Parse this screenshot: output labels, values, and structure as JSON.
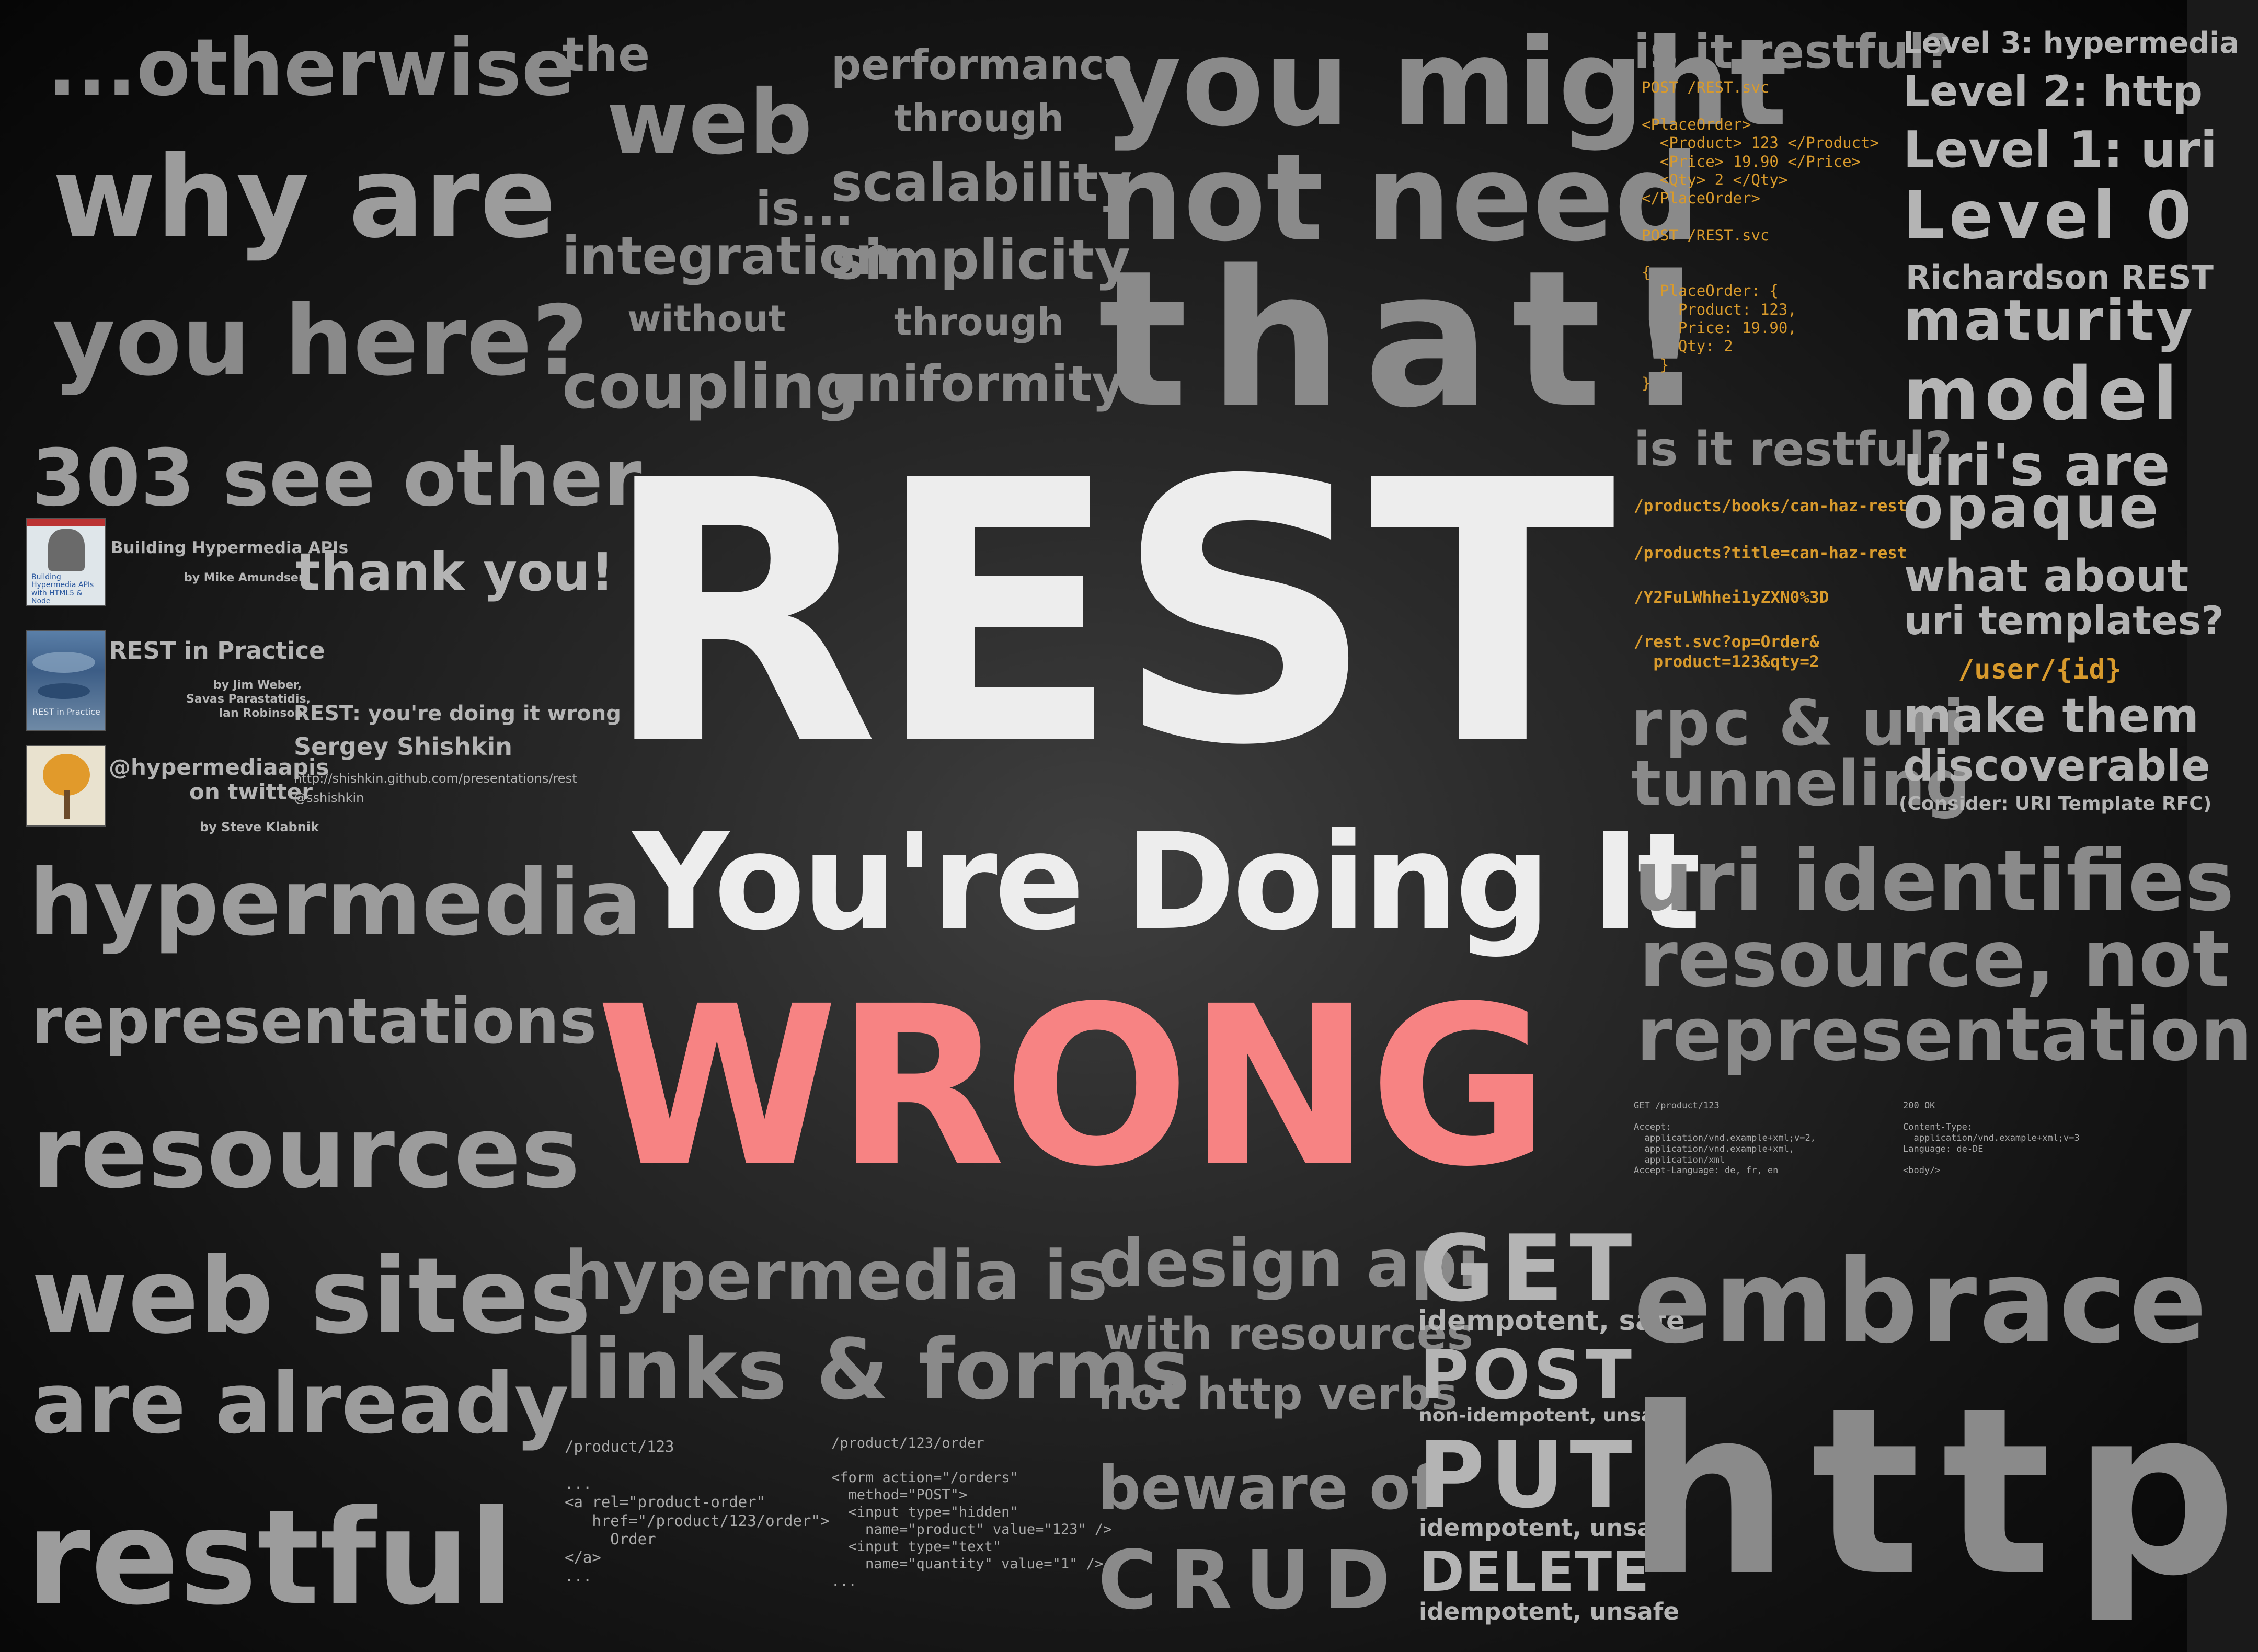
{
  "main": {
    "title": "REST",
    "subtitle": "You're Doing It",
    "emphasis": "WRONG"
  },
  "left_column": {
    "otherwise": "...otherwise",
    "why_are": "why are",
    "you_here": "you here?",
    "see_other": "303 see other",
    "thank_you": "thank you!",
    "hypermedia": "hypermedia",
    "representations": "representations",
    "resources": "resources",
    "web_sites": "web sites",
    "are_already": "are already",
    "restful": "restful"
  },
  "books": {
    "book1_title": "Building Hypermedia APIs",
    "book1_author": "by Mike Amundsen",
    "book1_cover_text": "Building Hypermedia APIs with HTML5 & Node",
    "book2_title": "REST in Practice",
    "book2_authors_1": "by Jim Weber,",
    "book2_authors_2": "Savas Parastatidis,",
    "book2_authors_3": "Ian Robinson",
    "book2_cover_text": "REST in Practice",
    "book3_handle": "@hypermediaapis",
    "book3_on": "on twitter",
    "book3_author": "by Steve Klabnik"
  },
  "credits": {
    "talk": "REST: you're doing it wrong",
    "name": "Sergey Shishkin",
    "url": "http://shishkin.github.com/presentations/rest",
    "handle": "@sshishkin"
  },
  "top_middle": {
    "the": "the",
    "web": "web",
    "is": "is...",
    "integration": "integration",
    "without": "without",
    "coupling": "coupling",
    "performance": "performance",
    "through1": "through",
    "scalability": "scalability",
    "simplicity": "simplicity",
    "through2": "through",
    "uniformity": "uniformity",
    "you_might": "you might",
    "not_need": "not need",
    "that": "that!"
  },
  "right_code": {
    "is_it_restful1": "is it restful?",
    "code1": "POST /REST.svc\n\n<PlaceOrder>\n  <Product> 123 </Product>\n  <Price> 19.90 </Price>\n  <Qty> 2 </Qty>\n</PlaceOrder>\n\nPOST /REST.svc\n\n{\n  PlaceOrder: {\n    Product: 123,\n    Price: 19.90,\n    Qty: 2\n  }\n}",
    "is_it_restful2": "is it restful?",
    "url1": "/products/books/can-haz-rest",
    "url2": "/products?title=can-haz-rest",
    "url3": "/Y2FuLWhhei1yZXN0%3D",
    "url4": "/rest.svc?op=Order&\n  product=123&qty=2",
    "rpc_uri": "rpc & uri",
    "tunneling": "tunneling",
    "uri_identifies": "uri identifies",
    "resource_not": "resource, not",
    "representation": "representation",
    "get_request": "GET /product/123\n\nAccept:\n  application/vnd.example+xml;v=2,\n  application/vnd.example+xml,\n  application/xml\nAccept-Language: de, fr, en",
    "response": "200 OK\n\nContent-Type:\n  application/vnd.example+xml;v=3\nLanguage: de-DE\n\n<body/>"
  },
  "far_right": {
    "level3": "Level 3: hypermedia",
    "level2": "Level 2: http",
    "level1": "Level 1: uri",
    "level0": "Level 0",
    "richardson": "Richardson REST",
    "maturity": "maturity",
    "model": "model",
    "uris_are": "uri's are",
    "opaque": "opaque",
    "what_about": "what about",
    "uri_templates": "uri templates?",
    "user_id": "/user/{id}",
    "make_them": "make them",
    "discoverable": "discoverable",
    "consider": "(Consider: URI Template RFC)"
  },
  "bottom": {
    "hypermedia_is": "hypermedia is",
    "links_forms": "links & forms",
    "product_link": "/product/123\n\n...\n<a rel=\"product-order\"\n   href=\"/product/123/order\">\n     Order\n</a>\n...",
    "order_form": "/product/123/order\n\n<form action=\"/orders\"\n  method=\"POST\">\n  <input type=\"hidden\"\n    name=\"product\" value=\"123\" />\n  <input type=\"text\"\n    name=\"quantity\" value=\"1\" />\n...",
    "design_api": "design api",
    "with_resources": "with resources",
    "not_http_verbs": "not http verbs",
    "beware_of": "beware of",
    "crud": "CRUD",
    "get": "GET",
    "get_desc": "idempotent, safe",
    "post": "POST",
    "post_desc": "non-idempotent, unsafe",
    "put": "PUT",
    "put_desc": "idempotent, unsafe",
    "delete": "DELETE",
    "delete_desc": "idempotent, unsafe",
    "embrace": "embrace",
    "http": "http"
  }
}
